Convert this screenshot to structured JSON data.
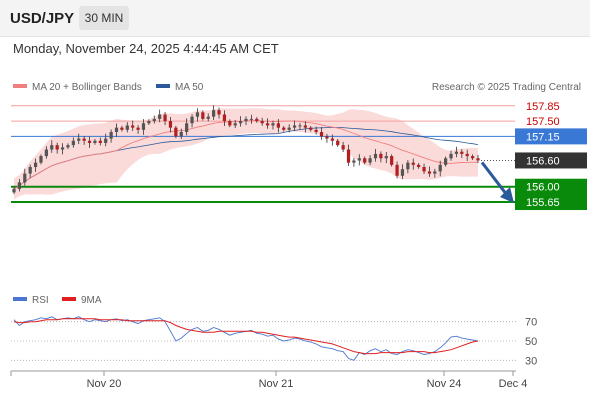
{
  "header": {
    "symbol": "USD/JPY",
    "timeframe": "30 MIN"
  },
  "datetime": "Monday, November 24, 2025 4:44:45 AM CET",
  "attribution": "Research © 2025 Trading Central",
  "colors": {
    "resistance": "#f2a0a0",
    "resistance_text": "#cc0000",
    "pivot": "#3a78d6",
    "support": "#0a8a0a",
    "price_label": "#333333",
    "candle_up": "#555555",
    "candle_down": "#b02020",
    "ma20": "#f08080",
    "bollinger_fill": "#fbdada",
    "ma50": "#2a5a9a",
    "rsi": "#4a76d0",
    "rsi_ma": "#e02020",
    "arrow": "#2a5a9a"
  },
  "chart_data": [
    {
      "type": "candlestick",
      "legend": [
        {
          "name": "MA 20 + Bollinger Bands",
          "color": "#f08080"
        },
        {
          "name": "MA 50",
          "color": "#2a5a9a"
        }
      ],
      "x_ticks": [
        "Nov 20",
        "Nov 21",
        "Nov 24",
        "Dec 4"
      ],
      "ylim": [
        153.8,
        158.05
      ],
      "levels": [
        {
          "label": "157.85",
          "value": 157.85,
          "kind": "resistance"
        },
        {
          "label": "157.50",
          "value": 157.5,
          "kind": "resistance"
        },
        {
          "label": "157.15",
          "value": 157.15,
          "kind": "pivot"
        },
        {
          "label": "156.00",
          "value": 156.0,
          "kind": "support"
        },
        {
          "label": "155.65",
          "value": 155.65,
          "kind": "support"
        }
      ],
      "last_price": {
        "label": "156.60",
        "value": 156.6
      },
      "forecast_target": 155.65,
      "closes": [
        155.95,
        156.1,
        156.3,
        156.45,
        156.55,
        156.7,
        156.85,
        156.95,
        156.85,
        156.9,
        156.95,
        157.05,
        157.1,
        157.05,
        157.0,
        157.05,
        157.0,
        157.1,
        157.25,
        157.35,
        157.3,
        157.4,
        157.35,
        157.3,
        157.45,
        157.5,
        157.55,
        157.65,
        157.5,
        157.35,
        157.15,
        157.25,
        157.45,
        157.6,
        157.7,
        157.55,
        157.6,
        157.75,
        157.65,
        157.5,
        157.4,
        157.45,
        157.5,
        157.55,
        157.55,
        157.5,
        157.45,
        157.4,
        157.45,
        157.35,
        157.3,
        157.35,
        157.4,
        157.4,
        157.35,
        157.3,
        157.25,
        157.15,
        157.1,
        157.05,
        156.95,
        156.85,
        156.55,
        156.6,
        156.65,
        156.55,
        156.65,
        156.75,
        156.65,
        156.7,
        156.5,
        156.25,
        156.4,
        156.55,
        156.5,
        156.45,
        156.35,
        156.3,
        156.35,
        156.5,
        156.65,
        156.75,
        156.8,
        156.75,
        156.7,
        156.65,
        156.6
      ]
    },
    {
      "type": "line",
      "legend": [
        {
          "name": "RSI",
          "color": "#4a76d0"
        },
        {
          "name": "9MA",
          "color": "#e02020"
        }
      ],
      "ylim": [
        20,
        80
      ],
      "y_ticks": [
        {
          "label": "70",
          "value": 70
        },
        {
          "label": "50",
          "value": 50
        },
        {
          "label": "30",
          "value": 30
        }
      ],
      "rsi": [
        72,
        66,
        70,
        71,
        72,
        74,
        73,
        75,
        72,
        73,
        74,
        73,
        75,
        72,
        70,
        72,
        71,
        70,
        72,
        73,
        71,
        72,
        70,
        68,
        71,
        72,
        73,
        74,
        70,
        60,
        50,
        53,
        58,
        62,
        64,
        60,
        61,
        64,
        62,
        59,
        56,
        58,
        59,
        60,
        61,
        58,
        57,
        55,
        56,
        52,
        50,
        51,
        53,
        52,
        50,
        49,
        47,
        44,
        43,
        42,
        40,
        39,
        32,
        30,
        38,
        36,
        40,
        42,
        39,
        41,
        37,
        36,
        39,
        41,
        40,
        38,
        36,
        37,
        39,
        43,
        48,
        54,
        55,
        53,
        52,
        51,
        50
      ],
      "ma9": [
        70,
        69,
        69,
        70,
        70,
        71,
        72,
        72,
        72,
        73,
        73,
        73,
        73,
        73,
        73,
        73,
        72,
        72,
        72,
        72,
        72,
        71,
        71,
        71,
        71,
        71,
        71,
        71,
        71,
        69,
        66,
        64,
        62,
        61,
        60,
        59,
        59,
        59,
        60,
        60,
        60,
        60,
        60,
        60,
        60,
        59,
        59,
        58,
        57,
        56,
        55,
        54,
        54,
        53,
        52,
        51,
        50,
        49,
        48,
        47,
        45,
        43,
        41,
        39,
        38,
        37,
        37,
        37,
        38,
        38,
        38,
        38,
        38,
        39,
        39,
        39,
        39,
        38,
        38,
        39,
        40,
        41,
        43,
        45,
        47,
        49,
        50
      ]
    }
  ]
}
